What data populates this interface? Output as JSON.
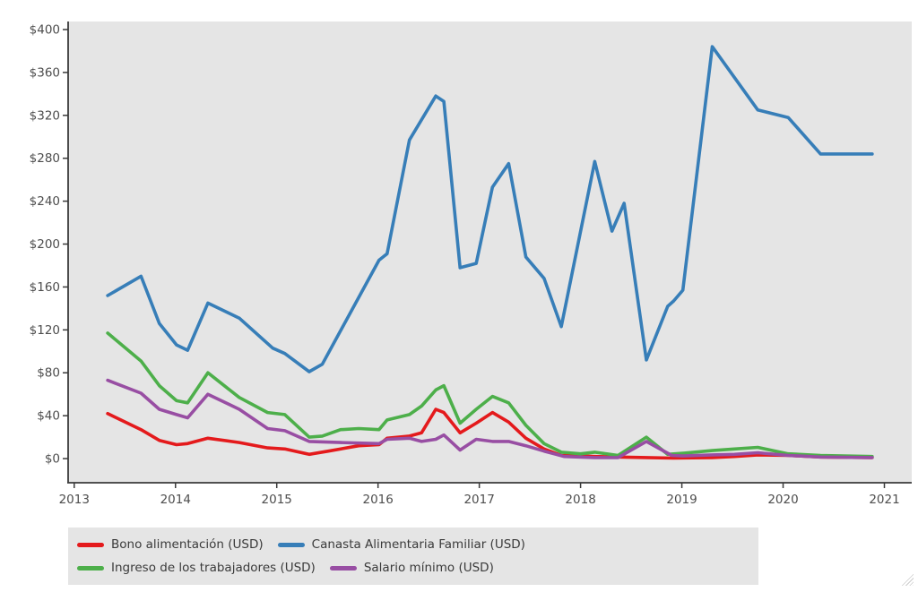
{
  "chart_data": {
    "type": "line",
    "title": "",
    "xlabel": "",
    "ylabel": "",
    "grid": false,
    "panel_bg": "#e5e5e5",
    "axis_color": "#3a3a3a",
    "tick_label_color": "#4d4d4d",
    "legend_position": "bottom",
    "x_range": [
      2012.94,
      2021.27
    ],
    "y_range": [
      -22.5,
      407.5
    ],
    "x_ticks": [
      2013,
      2014,
      2015,
      2016,
      2017,
      2018,
      2019,
      2020,
      2021
    ],
    "x_tick_labels": [
      "2013",
      "2014",
      "2015",
      "2016",
      "2017",
      "2018",
      "2019",
      "2020",
      "2021"
    ],
    "y_ticks": [
      0,
      40,
      80,
      120,
      160,
      200,
      240,
      280,
      320,
      360,
      400
    ],
    "y_tick_labels": [
      "$0",
      "$40",
      "$80",
      "$120",
      "$160",
      "$200",
      "$240",
      "$280",
      "$320",
      "$360",
      "$400"
    ],
    "series": [
      {
        "name": "Bono alimentación (USD)",
        "color": "#e41a1c",
        "points": [
          [
            2013.33,
            42
          ],
          [
            2013.66,
            27
          ],
          [
            2013.84,
            17
          ],
          [
            2014.01,
            13
          ],
          [
            2014.12,
            14
          ],
          [
            2014.32,
            19
          ],
          [
            2014.63,
            15
          ],
          [
            2014.91,
            10
          ],
          [
            2015.08,
            9
          ],
          [
            2015.32,
            4
          ],
          [
            2015.51,
            7
          ],
          [
            2015.81,
            12
          ],
          [
            2016.01,
            13
          ],
          [
            2016.09,
            19
          ],
          [
            2016.31,
            21
          ],
          [
            2016.43,
            24
          ],
          [
            2016.57,
            46
          ],
          [
            2016.65,
            43
          ],
          [
            2016.81,
            24
          ],
          [
            2016.97,
            33
          ],
          [
            2017.13,
            43
          ],
          [
            2017.29,
            34
          ],
          [
            2017.46,
            19
          ],
          [
            2017.64,
            9
          ],
          [
            2017.81,
            3
          ],
          [
            2018.14,
            2
          ],
          [
            2018.37,
            1.5
          ],
          [
            2018.65,
            1
          ],
          [
            2018.92,
            0.5
          ],
          [
            2019.3,
            1
          ],
          [
            2019.52,
            2
          ],
          [
            2019.75,
            3.5
          ],
          [
            2020.05,
            3
          ],
          [
            2020.37,
            1.5
          ],
          [
            2020.88,
            1
          ]
        ]
      },
      {
        "name": "Canasta Alimentaria Familiar (USD)",
        "color": "#377eb8",
        "points": [
          [
            2013.33,
            152
          ],
          [
            2013.66,
            170
          ],
          [
            2013.84,
            126
          ],
          [
            2014.01,
            106
          ],
          [
            2014.12,
            101
          ],
          [
            2014.32,
            145
          ],
          [
            2014.63,
            131
          ],
          [
            2014.96,
            103
          ],
          [
            2015.08,
            98
          ],
          [
            2015.32,
            81
          ],
          [
            2015.45,
            88
          ],
          [
            2016.01,
            185
          ],
          [
            2016.09,
            191
          ],
          [
            2016.31,
            297
          ],
          [
            2016.57,
            338
          ],
          [
            2016.65,
            333
          ],
          [
            2016.81,
            178
          ],
          [
            2016.97,
            182
          ],
          [
            2017.13,
            253
          ],
          [
            2017.29,
            275
          ],
          [
            2017.46,
            188
          ],
          [
            2017.64,
            168
          ],
          [
            2017.81,
            123
          ],
          [
            2018.14,
            277
          ],
          [
            2018.31,
            212
          ],
          [
            2018.43,
            238
          ],
          [
            2018.65,
            92
          ],
          [
            2018.86,
            142
          ],
          [
            2018.92,
            147
          ],
          [
            2019.01,
            157
          ],
          [
            2019.3,
            384
          ],
          [
            2019.75,
            325
          ],
          [
            2020.05,
            318
          ],
          [
            2020.37,
            284
          ],
          [
            2020.88,
            284
          ]
        ]
      },
      {
        "name": "Ingreso de los trabajadores (USD)",
        "color": "#4daf4a",
        "points": [
          [
            2013.33,
            117
          ],
          [
            2013.66,
            91
          ],
          [
            2013.84,
            68
          ],
          [
            2014.01,
            54
          ],
          [
            2014.12,
            52
          ],
          [
            2014.32,
            80
          ],
          [
            2014.63,
            57
          ],
          [
            2014.91,
            43
          ],
          [
            2015.08,
            41
          ],
          [
            2015.32,
            20
          ],
          [
            2015.45,
            21
          ],
          [
            2015.63,
            27
          ],
          [
            2015.81,
            28
          ],
          [
            2016.01,
            27
          ],
          [
            2016.09,
            36
          ],
          [
            2016.31,
            41
          ],
          [
            2016.43,
            49
          ],
          [
            2016.57,
            64
          ],
          [
            2016.65,
            68
          ],
          [
            2016.81,
            33
          ],
          [
            2016.97,
            46
          ],
          [
            2017.13,
            58
          ],
          [
            2017.29,
            52
          ],
          [
            2017.46,
            31
          ],
          [
            2017.64,
            14
          ],
          [
            2017.81,
            6
          ],
          [
            2018.0,
            4.5
          ],
          [
            2018.14,
            6
          ],
          [
            2018.37,
            3
          ],
          [
            2018.65,
            20
          ],
          [
            2018.86,
            4
          ],
          [
            2019.01,
            5
          ],
          [
            2019.3,
            7.5
          ],
          [
            2019.52,
            9
          ],
          [
            2019.75,
            10.5
          ],
          [
            2020.05,
            4.5
          ],
          [
            2020.37,
            3
          ],
          [
            2020.88,
            2
          ]
        ]
      },
      {
        "name": "Salario mínimo (USD)",
        "color": "#984ea3",
        "points": [
          [
            2013.33,
            73
          ],
          [
            2013.66,
            61
          ],
          [
            2013.84,
            46
          ],
          [
            2014.01,
            41
          ],
          [
            2014.12,
            38
          ],
          [
            2014.32,
            60
          ],
          [
            2014.63,
            46
          ],
          [
            2014.91,
            28
          ],
          [
            2015.08,
            26
          ],
          [
            2015.32,
            16
          ],
          [
            2015.63,
            15
          ],
          [
            2016.01,
            14
          ],
          [
            2016.09,
            18
          ],
          [
            2016.31,
            19
          ],
          [
            2016.43,
            16
          ],
          [
            2016.57,
            18
          ],
          [
            2016.65,
            22
          ],
          [
            2016.81,
            8
          ],
          [
            2016.97,
            18
          ],
          [
            2017.13,
            16
          ],
          [
            2017.29,
            16
          ],
          [
            2017.46,
            12
          ],
          [
            2017.64,
            7
          ],
          [
            2017.84,
            2
          ],
          [
            2018.14,
            1
          ],
          [
            2018.37,
            1
          ],
          [
            2018.65,
            16
          ],
          [
            2018.9,
            3
          ],
          [
            2019.01,
            2.5
          ],
          [
            2019.3,
            3.5
          ],
          [
            2019.52,
            4
          ],
          [
            2019.75,
            5.5
          ],
          [
            2020.05,
            3
          ],
          [
            2020.37,
            1.5
          ],
          [
            2020.88,
            1
          ]
        ]
      }
    ]
  }
}
